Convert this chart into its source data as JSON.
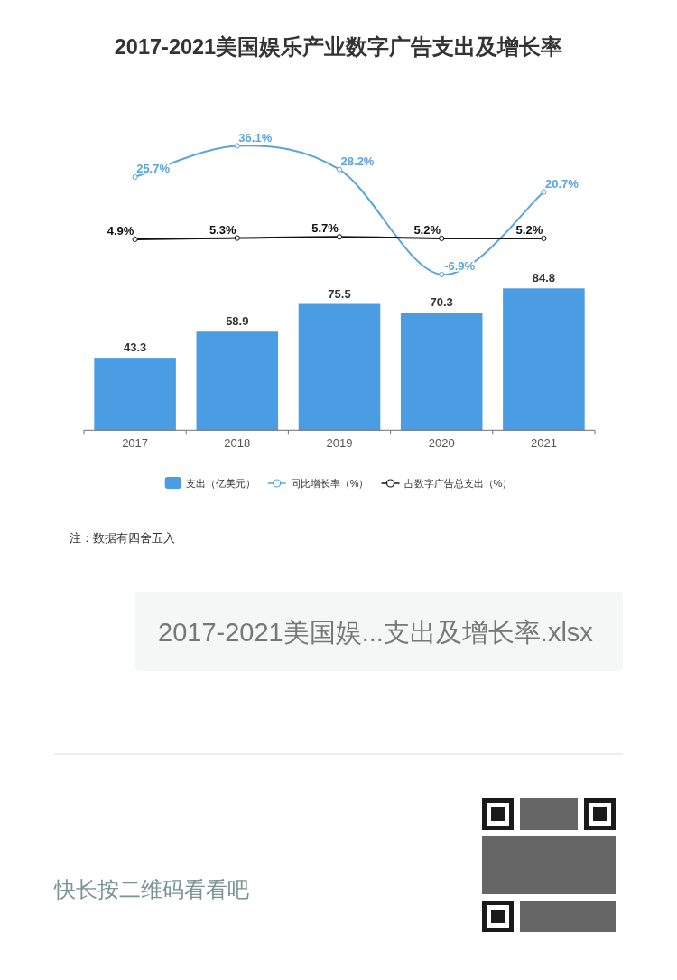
{
  "chart_data": [
    {
      "type": "line",
      "title": "2017-2021美国娱乐产业数字广告支出及增长率",
      "categories": [
        null,
        null,
        null,
        null,
        null
      ],
      "series": [
        {
          "name": "同比增长率（%）",
          "color": "#5ba5dc",
          "values": [
            25.7,
            36.1,
            28.2,
            -6.9,
            20.7
          ],
          "value_labels": [
            "25.7%",
            "36.1%",
            "28.2%",
            "-6.9%",
            "20.7%"
          ]
        },
        {
          "name": "占数字广告总支出（%）",
          "color": "#111111",
          "values": [
            4.9,
            5.3,
            5.7,
            5.2,
            5.2
          ],
          "value_labels": [
            "4.9%",
            "5.3%",
            "5.7%",
            "5.2%",
            "5.2%"
          ]
        }
      ],
      "tick_labels": false,
      "legend": "bottom",
      "marker": "circle",
      "line_style": "solid"
    },
    {
      "type": "bar",
      "categories": [
        "2017",
        "2018",
        "2019",
        "2020",
        "2021"
      ],
      "series": [
        {
          "name": "支出（亿美元）",
          "color": "#4a9de2",
          "values": [
            43.3,
            58.9,
            75.5,
            70.3,
            84.8
          ],
          "value_labels": [
            "43.3",
            "58.9",
            "75.5",
            "70.3",
            "84.8"
          ]
        }
      ],
      "tick_labels": "x",
      "legend": "bottom",
      "annotations": [
        "注：数据有四舍五入",
        "2017-2021美国娱...支出及增长率.xlsx",
        "快长按二维码看看吧"
      ]
    }
  ]
}
